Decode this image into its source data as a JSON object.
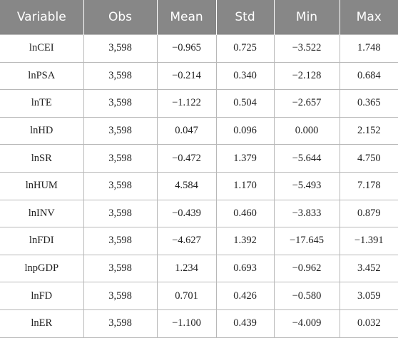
{
  "table": {
    "header": [
      "Variable",
      "Obs",
      "Mean",
      "Std",
      "Min",
      "Max"
    ],
    "rows": [
      [
        "lnCEI",
        "3,598",
        "−0.965",
        "0.725",
        "−3.522",
        "1.748"
      ],
      [
        "lnPSA",
        "3,598",
        "−0.214",
        "0.340",
        "−2.128",
        "0.684"
      ],
      [
        "lnTE",
        "3,598",
        "−1.122",
        "0.504",
        "−2.657",
        "0.365"
      ],
      [
        "lnHD",
        "3,598",
        "0.047",
        "0.096",
        "0.000",
        "2.152"
      ],
      [
        "lnSR",
        "3,598",
        "−0.472",
        "1.379",
        "−5.644",
        "4.750"
      ],
      [
        "lnHUM",
        "3,598",
        "4.584",
        "1.170",
        "−5.493",
        "7.178"
      ],
      [
        "lnINV",
        "3,598",
        "−0.439",
        "0.460",
        "−3.833",
        "0.879"
      ],
      [
        "lnFDI",
        "3,598",
        "−4.627",
        "1.392",
        "−17.645",
        "−1.391"
      ],
      [
        "lnpGDP",
        "3,598",
        "1.234",
        "0.693",
        "−0.962",
        "3.452"
      ],
      [
        "lnFD",
        "3,598",
        "0.701",
        "0.426",
        "−0.580",
        "3.059"
      ],
      [
        "lnER",
        "3,598",
        "−1.100",
        "0.439",
        "−4.009",
        "0.032"
      ]
    ]
  }
}
